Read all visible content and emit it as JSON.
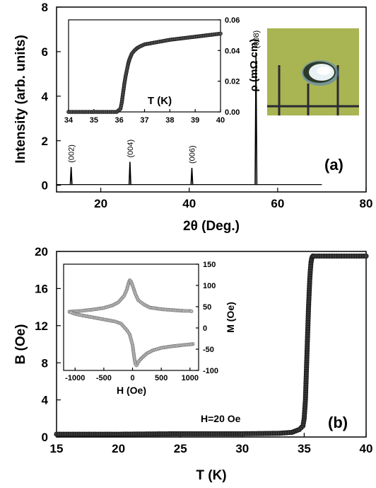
{
  "colors": {
    "axis": "#000000",
    "trace": "#000000",
    "marker_dark": "#222222",
    "marker_grey": "#8c8c8c",
    "photo_bg": "#b2bd5a",
    "photo_grid": "#2a2a32",
    "photo_crystal": "#e8f1f4",
    "photo_glow": "#4a7dd0"
  },
  "chart_data": [
    {
      "id": "panel-a",
      "type": "line",
      "panel_label": "(a)",
      "xlabel": "2θ (Deg.)",
      "ylabel": "Intensity (arb. units)",
      "xlim": [
        10,
        80
      ],
      "ylim": [
        -0.3,
        8
      ],
      "xticks": [
        20,
        40,
        60,
        80
      ],
      "yticks": [
        0,
        2,
        4,
        6,
        8
      ],
      "data_range": [
        10,
        70
      ],
      "baseline": 0.03,
      "peaks": [
        {
          "x": 13.3,
          "y": 0.82,
          "label": "(002)"
        },
        {
          "x": 26.6,
          "y": 1.05,
          "label": "(004)"
        },
        {
          "x": 40.6,
          "y": 0.78,
          "label": "(006)"
        },
        {
          "x": 55.1,
          "y": 5.95,
          "label": "(008)"
        }
      ],
      "grid": false,
      "photo_inset": true
    },
    {
      "id": "inset-a",
      "type": "scatter",
      "xlabel": "T (K)",
      "ylabel": "ρ (mΩ cm)",
      "xlim": [
        34,
        40
      ],
      "ylim": [
        0,
        0.06
      ],
      "xticks": [
        34,
        35,
        36,
        37,
        38,
        39,
        40
      ],
      "yticks": [
        0.0,
        0.02,
        0.04,
        0.06
      ],
      "ytick_labels": [
        "0.00",
        "0.02",
        "0.04",
        "0.06"
      ],
      "yaxis_side": "right",
      "series": [
        {
          "x": [
            34.0,
            35.0,
            35.9,
            36.05,
            36.1,
            36.15,
            36.2,
            36.25,
            36.3,
            36.35,
            36.4,
            36.5,
            36.6,
            36.7,
            36.8,
            37.0,
            37.5,
            38.0,
            38.5,
            39.0,
            39.5,
            40.0
          ],
          "y": [
            0.0,
            0.0,
            0.0,
            0.002,
            0.006,
            0.012,
            0.018,
            0.023,
            0.027,
            0.031,
            0.034,
            0.038,
            0.04,
            0.0415,
            0.0425,
            0.044,
            0.0455,
            0.047,
            0.048,
            0.049,
            0.05,
            0.051
          ]
        }
      ]
    },
    {
      "id": "panel-b",
      "type": "scatter",
      "panel_label": "(b)",
      "annotation": "H=20 Oe",
      "xlabel": "T (K)",
      "ylabel": "B (Oe)",
      "xlim": [
        15,
        40
      ],
      "ylim": [
        0,
        20
      ],
      "xticks": [
        15,
        20,
        25,
        30,
        35,
        40
      ],
      "yticks": [
        0,
        4,
        8,
        12,
        16,
        20
      ],
      "series": [
        {
          "x": [
            15,
            20,
            25,
            30,
            33,
            34,
            34.6,
            34.9,
            35.0,
            35.1,
            35.15,
            35.2,
            35.25,
            35.3,
            35.35,
            35.4,
            35.45,
            35.5,
            35.55,
            35.6,
            35.65,
            35.7,
            35.8,
            36.0,
            37,
            38,
            39,
            40
          ],
          "y": [
            0.3,
            0.3,
            0.35,
            0.35,
            0.4,
            0.5,
            0.8,
            1.2,
            2.0,
            4.0,
            6.0,
            8.0,
            10.0,
            12.0,
            14.0,
            15.5,
            17.0,
            18.0,
            18.8,
            19.2,
            19.4,
            19.5,
            19.5,
            19.5,
            19.5,
            19.5,
            19.5,
            19.5
          ]
        }
      ],
      "grid": false
    },
    {
      "id": "inset-b",
      "type": "scatter",
      "xlabel": "H (Oe)",
      "ylabel": "M (Oe)",
      "xlim": [
        -1200,
        1150
      ],
      "ylim": [
        -100,
        150
      ],
      "xticks": [
        -1000,
        -500,
        0,
        500,
        1000
      ],
      "yticks": [
        -100,
        -50,
        0,
        50,
        100,
        150
      ],
      "yaxis_side": "right",
      "series": [
        {
          "name": "",
          "x": [
            -1100,
            -900,
            -700,
            -500,
            -350,
            -250,
            -150,
            -100,
            -70,
            -50,
            -30,
            0,
            50,
            100,
            200,
            300,
            500,
            700,
            900,
            1000,
            1050
          ],
          "y": [
            38,
            40,
            43,
            47,
            53,
            60,
            75,
            90,
            105,
            112,
            110,
            100,
            80,
            65,
            55,
            48,
            44,
            42,
            40,
            40,
            38
          ]
        },
        {
          "name": "",
          "x": [
            1050,
            900,
            700,
            500,
            350,
            250,
            150,
            100,
            70,
            50,
            30,
            0,
            -50,
            -100,
            -200,
            -300,
            -500,
            -700,
            -900,
            -1000,
            -1100
          ],
          "y": [
            -38,
            -40,
            -43,
            -47,
            -53,
            -60,
            -72,
            -80,
            -88,
            -85,
            -70,
            -40,
            -15,
            -5,
            10,
            15,
            20,
            25,
            30,
            33,
            38
          ]
        }
      ]
    }
  ]
}
